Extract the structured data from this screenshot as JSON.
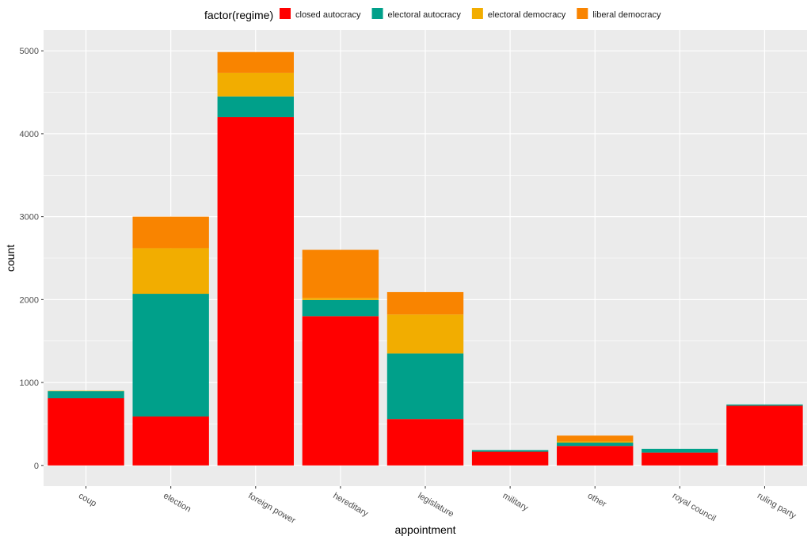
{
  "chart_data": {
    "type": "bar",
    "stacked": true,
    "xlabel": "appointment",
    "ylabel": "count",
    "legend_title": "factor(regime)",
    "legend_position": "top",
    "grid": true,
    "ylim": [
      -250,
      5250
    ],
    "yticks": [
      0,
      1000,
      2000,
      3000,
      4000,
      5000
    ],
    "ytick_labels": [
      "0",
      "1000",
      "2000",
      "3000",
      "4000",
      "5000"
    ],
    "categories": [
      "coup",
      "election",
      "foreign power",
      "hereditary",
      "legislature",
      "military",
      "other",
      "royal council",
      "ruling party"
    ],
    "series": [
      {
        "name": "closed autocracy",
        "color": "#ff0000",
        "values": [
          810,
          590,
          4200,
          1800,
          560,
          165,
          235,
          155,
          720
        ]
      },
      {
        "name": "electoral autocracy",
        "color": "#00a08a",
        "values": [
          85,
          1480,
          250,
          195,
          790,
          20,
          40,
          45,
          15
        ]
      },
      {
        "name": "electoral democracy",
        "color": "#f2ad00",
        "values": [
          5,
          550,
          285,
          25,
          470,
          0,
          15,
          0,
          0
        ]
      },
      {
        "name": "liberal democracy",
        "color": "#f98400",
        "values": [
          0,
          380,
          250,
          580,
          270,
          0,
          70,
          0,
          0
        ]
      }
    ]
  }
}
